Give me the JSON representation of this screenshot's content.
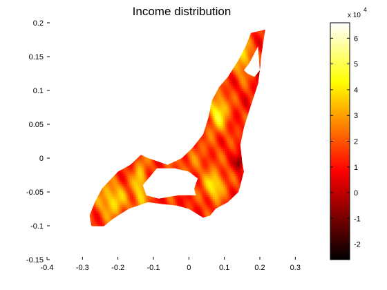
{
  "chart_data": {
    "type": "heatmap",
    "title": "Income distribution",
    "xlabel": "",
    "ylabel": "",
    "xlim": [
      -0.4,
      0.35
    ],
    "ylim": [
      -0.15,
      0.2
    ],
    "xticks": [
      -0.4,
      -0.3,
      -0.2,
      -0.1,
      0,
      0.1,
      0.2,
      0.3
    ],
    "xtick_labels": [
      "-0.4",
      "-0.3",
      "-0.2",
      "-0.1",
      "0",
      "0.1",
      "0.2",
      "0.3"
    ],
    "yticks": [
      -0.15,
      -0.1,
      -0.05,
      0,
      0.05,
      0.1,
      0.15,
      0.2
    ],
    "ytick_labels": [
      "-0.15",
      "-0.1",
      "-0.05",
      "0",
      "0.05",
      "0.1",
      "0.15",
      "0.2"
    ],
    "grid": false,
    "colormap": "hot",
    "colorbar": {
      "range": [
        -2.6,
        6.6
      ],
      "ticks": [
        -2,
        -1,
        0,
        1,
        2,
        3,
        4,
        5,
        6
      ],
      "tick_labels": [
        "-2",
        "-1",
        "0",
        "1",
        "2",
        "3",
        "4",
        "5",
        "6"
      ],
      "multiplier_base": "x 10",
      "multiplier_exponent": "4"
    },
    "region_outline": [
      [
        0.175,
        0.185
      ],
      [
        0.215,
        0.19
      ],
      [
        0.205,
        0.155
      ],
      [
        0.2,
        0.13
      ],
      [
        0.195,
        0.11
      ],
      [
        0.17,
        0.07
      ],
      [
        0.155,
        0.045
      ],
      [
        0.145,
        0.02
      ],
      [
        0.15,
        -0.005
      ],
      [
        0.155,
        -0.02
      ],
      [
        0.14,
        -0.05
      ],
      [
        0.11,
        -0.065
      ],
      [
        0.075,
        -0.075
      ],
      [
        0.06,
        -0.085
      ],
      [
        0.04,
        -0.088
      ],
      [
        0.0,
        -0.075
      ],
      [
        -0.035,
        -0.07
      ],
      [
        -0.075,
        -0.068
      ],
      [
        -0.115,
        -0.065
      ],
      [
        -0.17,
        -0.075
      ],
      [
        -0.215,
        -0.09
      ],
      [
        -0.25,
        -0.105
      ],
      [
        -0.275,
        -0.1
      ],
      [
        -0.28,
        -0.085
      ],
      [
        -0.265,
        -0.065
      ],
      [
        -0.245,
        -0.045
      ],
      [
        -0.2,
        -0.02
      ],
      [
        -0.165,
        -0.01
      ],
      [
        -0.135,
        0.005
      ],
      [
        -0.115,
        0.0
      ],
      [
        -0.06,
        -0.01
      ],
      [
        -0.02,
        0.0
      ],
      [
        0.01,
        0.015
      ],
      [
        0.04,
        0.035
      ],
      [
        0.055,
        0.06
      ],
      [
        0.065,
        0.085
      ],
      [
        0.085,
        0.105
      ],
      [
        0.11,
        0.12
      ],
      [
        0.14,
        0.145
      ],
      [
        0.16,
        0.165
      ]
    ],
    "region_holes": [
      [
        [
          0.17,
          0.14
        ],
        [
          0.195,
          0.165
        ],
        [
          0.2,
          0.13
        ],
        [
          0.185,
          0.12
        ],
        [
          0.165,
          0.125
        ],
        [
          0.155,
          0.13
        ]
      ],
      [
        [
          -0.13,
          -0.04
        ],
        [
          -0.09,
          -0.015
        ],
        [
          -0.04,
          -0.015
        ],
        [
          0.0,
          -0.02
        ],
        [
          0.025,
          -0.03
        ],
        [
          0.015,
          -0.045
        ],
        [
          0.02,
          -0.055
        ],
        [
          -0.03,
          -0.055
        ],
        [
          -0.085,
          -0.06
        ],
        [
          -0.12,
          -0.055
        ]
      ]
    ],
    "field_terms": [
      {
        "cx": 0.08,
        "cy": 0.07,
        "amp": 3.0,
        "sx": 0.02,
        "sy": 0.02
      },
      {
        "cx": 0.15,
        "cy": 0.15,
        "amp": 2.5,
        "sx": 0.02,
        "sy": 0.02
      },
      {
        "cx": -0.22,
        "cy": -0.06,
        "amp": 2.6,
        "sx": 0.03,
        "sy": 0.02
      },
      {
        "cx": -0.14,
        "cy": -0.04,
        "amp": 2.5,
        "sx": 0.015,
        "sy": 0.03
      },
      {
        "cx": 0.07,
        "cy": -0.04,
        "amp": 2.8,
        "sx": 0.02,
        "sy": 0.015
      },
      {
        "cx": 0.14,
        "cy": -0.005,
        "amp": -2.5,
        "sx": 0.008,
        "sy": 0.008
      },
      {
        "cx": 0.195,
        "cy": 0.13,
        "amp": -1.4,
        "sx": 0.008,
        "sy": 0.01
      },
      {
        "cx": 0.0,
        "cy": 0.0,
        "amp": 0.8,
        "sx": 0.05,
        "sy": 0.03
      }
    ],
    "base_value": 1.3
  }
}
